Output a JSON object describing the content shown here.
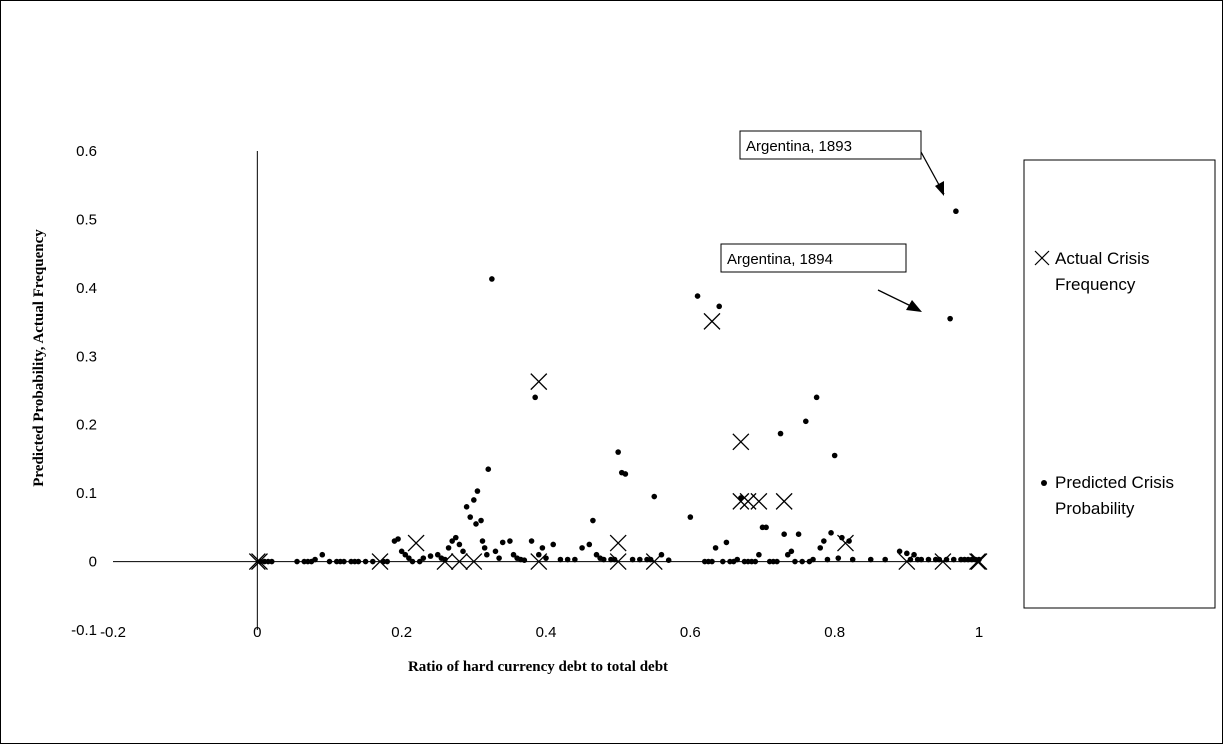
{
  "chart_data": {
    "type": "scatter",
    "xlabel": "Ratio of hard currency debt to total debt",
    "ylabel": "Predicted Probability, Actual Frequency",
    "xlim": [
      -0.2,
      1
    ],
    "ylim": [
      -0.1,
      0.6
    ],
    "x_ticks": [
      "-0.2",
      "0",
      "0.2",
      "0.4",
      "0.6",
      "0.8",
      "1"
    ],
    "x_tick_values": [
      -0.2,
      0,
      0.2,
      0.4,
      0.6,
      0.8,
      1
    ],
    "y_ticks": [
      "0.6",
      "0.5",
      "0.4",
      "0.3",
      "0.2",
      "0.1",
      "0",
      "-0.1"
    ],
    "y_tick_values": [
      0.6,
      0.5,
      0.4,
      0.3,
      0.2,
      0.1,
      0,
      -0.1
    ],
    "grid": false,
    "legend_position": "right",
    "series": [
      {
        "name": "Actual Crisis Frequency",
        "marker": "x",
        "points": [
          [
            0,
            0
          ],
          [
            0.003,
            0
          ],
          [
            0.17,
            0
          ],
          [
            0.22,
            0.027
          ],
          [
            0.26,
            0
          ],
          [
            0.28,
            0
          ],
          [
            0.3,
            0
          ],
          [
            0.39,
            0.263
          ],
          [
            0.39,
            0
          ],
          [
            0.5,
            0.027
          ],
          [
            0.5,
            0
          ],
          [
            0.55,
            0
          ],
          [
            0.63,
            0.351
          ],
          [
            0.67,
            0.175
          ],
          [
            0.67,
            0.088
          ],
          [
            0.68,
            0.088
          ],
          [
            0.695,
            0.088
          ],
          [
            0.73,
            0.088
          ],
          [
            0.815,
            0.027
          ],
          [
            0.9,
            0
          ],
          [
            0.95,
            0
          ],
          [
            0.998,
            0
          ],
          [
            1,
            0
          ]
        ]
      },
      {
        "name": "Predicted Crisis Probability",
        "marker": "dot",
        "points": [
          [
            0.005,
            0
          ],
          [
            0.01,
            0
          ],
          [
            0.015,
            0
          ],
          [
            0.02,
            0
          ],
          [
            0.055,
            0
          ],
          [
            0.065,
            0
          ],
          [
            0.07,
            0
          ],
          [
            0.075,
            0
          ],
          [
            0.08,
            0.003
          ],
          [
            0.09,
            0.01
          ],
          [
            0.1,
            0
          ],
          [
            0.11,
            0
          ],
          [
            0.115,
            0
          ],
          [
            0.12,
            0
          ],
          [
            0.13,
            0
          ],
          [
            0.135,
            0
          ],
          [
            0.14,
            0
          ],
          [
            0.15,
            0
          ],
          [
            0.16,
            0
          ],
          [
            0.175,
            0
          ],
          [
            0.18,
            0
          ],
          [
            0.19,
            0.03
          ],
          [
            0.195,
            0.033
          ],
          [
            0.2,
            0.015
          ],
          [
            0.205,
            0.01
          ],
          [
            0.21,
            0.005
          ],
          [
            0.215,
            0
          ],
          [
            0.225,
            0
          ],
          [
            0.23,
            0.005
          ],
          [
            0.24,
            0.008
          ],
          [
            0.25,
            0.01
          ],
          [
            0.255,
            0.005
          ],
          [
            0.26,
            0.003
          ],
          [
            0.265,
            0.02
          ],
          [
            0.27,
            0.03
          ],
          [
            0.275,
            0.035
          ],
          [
            0.28,
            0.025
          ],
          [
            0.285,
            0.015
          ],
          [
            0.29,
            0.08
          ],
          [
            0.295,
            0.065
          ],
          [
            0.3,
            0.09
          ],
          [
            0.303,
            0.055
          ],
          [
            0.305,
            0.103
          ],
          [
            0.31,
            0.06
          ],
          [
            0.312,
            0.03
          ],
          [
            0.315,
            0.02
          ],
          [
            0.318,
            0.01
          ],
          [
            0.32,
            0.135
          ],
          [
            0.325,
            0.413
          ],
          [
            0.33,
            0.015
          ],
          [
            0.335,
            0.005
          ],
          [
            0.34,
            0.028
          ],
          [
            0.35,
            0.03
          ],
          [
            0.355,
            0.01
          ],
          [
            0.36,
            0.005
          ],
          [
            0.365,
            0.003
          ],
          [
            0.37,
            0.002
          ],
          [
            0.38,
            0.03
          ],
          [
            0.385,
            0.24
          ],
          [
            0.39,
            0.01
          ],
          [
            0.395,
            0.02
          ],
          [
            0.4,
            0.005
          ],
          [
            0.41,
            0.025
          ],
          [
            0.42,
            0.003
          ],
          [
            0.43,
            0.003
          ],
          [
            0.44,
            0.003
          ],
          [
            0.45,
            0.02
          ],
          [
            0.46,
            0.025
          ],
          [
            0.465,
            0.06
          ],
          [
            0.47,
            0.01
          ],
          [
            0.475,
            0.005
          ],
          [
            0.48,
            0.003
          ],
          [
            0.49,
            0.003
          ],
          [
            0.495,
            0.003
          ],
          [
            0.5,
            0.16
          ],
          [
            0.505,
            0.13
          ],
          [
            0.51,
            0.128
          ],
          [
            0.52,
            0.003
          ],
          [
            0.53,
            0.003
          ],
          [
            0.54,
            0.003
          ],
          [
            0.545,
            0.003
          ],
          [
            0.55,
            0.095
          ],
          [
            0.56,
            0.01
          ],
          [
            0.57,
            0.002
          ],
          [
            0.6,
            0.065
          ],
          [
            0.61,
            0.388
          ],
          [
            0.62,
            0
          ],
          [
            0.625,
            0
          ],
          [
            0.63,
            0
          ],
          [
            0.635,
            0.02
          ],
          [
            0.64,
            0.373
          ],
          [
            0.645,
            0
          ],
          [
            0.65,
            0.028
          ],
          [
            0.655,
            0
          ],
          [
            0.66,
            0
          ],
          [
            0.665,
            0.003
          ],
          [
            0.67,
            0.093
          ],
          [
            0.675,
            0
          ],
          [
            0.68,
            0
          ],
          [
            0.685,
            0
          ],
          [
            0.69,
            0
          ],
          [
            0.695,
            0.01
          ],
          [
            0.7,
            0.05
          ],
          [
            0.705,
            0.05
          ],
          [
            0.71,
            0
          ],
          [
            0.715,
            0
          ],
          [
            0.72,
            0
          ],
          [
            0.725,
            0.187
          ],
          [
            0.73,
            0.04
          ],
          [
            0.735,
            0.01
          ],
          [
            0.74,
            0.015
          ],
          [
            0.745,
            0
          ],
          [
            0.75,
            0.04
          ],
          [
            0.755,
            0
          ],
          [
            0.76,
            0.205
          ],
          [
            0.765,
            0
          ],
          [
            0.77,
            0.003
          ],
          [
            0.775,
            0.24
          ],
          [
            0.78,
            0.02
          ],
          [
            0.785,
            0.03
          ],
          [
            0.79,
            0.003
          ],
          [
            0.795,
            0.042
          ],
          [
            0.8,
            0.155
          ],
          [
            0.805,
            0.005
          ],
          [
            0.81,
            0.035
          ],
          [
            0.82,
            0.03
          ],
          [
            0.825,
            0.003
          ],
          [
            0.85,
            0.003
          ],
          [
            0.87,
            0.003
          ],
          [
            0.89,
            0.015
          ],
          [
            0.9,
            0.012
          ],
          [
            0.905,
            0.003
          ],
          [
            0.91,
            0.01
          ],
          [
            0.915,
            0.003
          ],
          [
            0.92,
            0.003
          ],
          [
            0.93,
            0.003
          ],
          [
            0.94,
            0.003
          ],
          [
            0.945,
            0.003
          ],
          [
            0.955,
            0.003
          ],
          [
            0.96,
            0.355
          ],
          [
            0.965,
            0.003
          ],
          [
            0.968,
            0.512
          ],
          [
            0.975,
            0.003
          ],
          [
            0.98,
            0.003
          ],
          [
            0.985,
            0.003
          ],
          [
            0.99,
            0.003
          ],
          [
            0.995,
            0.003
          ],
          [
            1,
            0.003
          ]
        ]
      }
    ],
    "annotations": [
      {
        "text": "Argentina, 1893",
        "target": [
          0.968,
          0.512
        ]
      },
      {
        "text": "Argentina, 1894",
        "target": [
          0.96,
          0.355
        ]
      }
    ]
  }
}
